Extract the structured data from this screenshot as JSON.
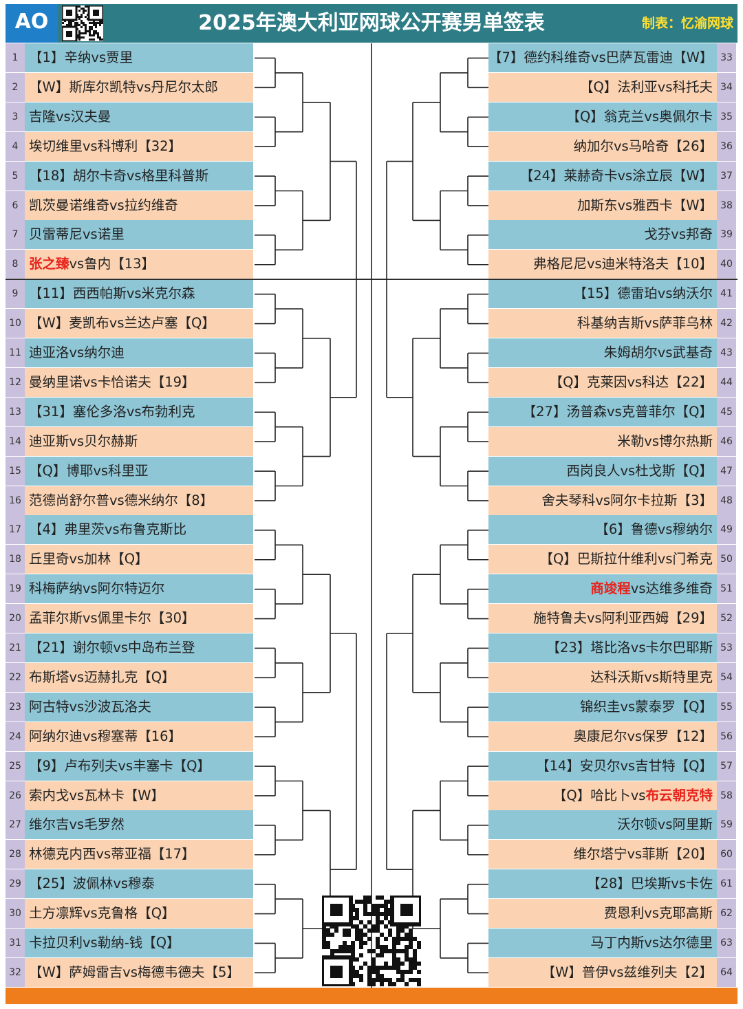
{
  "header": {
    "logo_text": "AO",
    "title": "2025年澳大利亚网球公开赛男单签表",
    "maker": "制表：忆渝网球"
  },
  "colors": {
    "header_bg": "#2e7d86",
    "row_blue": "#8ec6d6",
    "row_peach": "#fbd3b2",
    "num_bg": "#c9c0dd",
    "highlight": "#e8231c",
    "bottom_bar": "#ef7d1c",
    "title_text": "#ffffff",
    "maker_text": "#ffe030"
  },
  "left_matches": [
    {
      "num": "1",
      "pre": "【1】辛纳vs贾里",
      "hl": "",
      "post": ""
    },
    {
      "num": "2",
      "pre": "【W】斯库尔凯特vs丹尼尔太郎",
      "hl": "",
      "post": ""
    },
    {
      "num": "3",
      "pre": "吉隆vs汉夫曼",
      "hl": "",
      "post": ""
    },
    {
      "num": "4",
      "pre": "埃切维里vs科博利【32】",
      "hl": "",
      "post": ""
    },
    {
      "num": "5",
      "pre": "【18】胡尔卡奇vs格里科普斯",
      "hl": "",
      "post": ""
    },
    {
      "num": "6",
      "pre": "凯茨曼诺维奇vs拉约维奇",
      "hl": "",
      "post": ""
    },
    {
      "num": "7",
      "pre": "贝雷蒂尼vs诺里",
      "hl": "",
      "post": ""
    },
    {
      "num": "8",
      "pre": "",
      "hl": "张之臻",
      "post": "vs鲁内【13】"
    },
    {
      "num": "9",
      "pre": "【11】西西帕斯vs米克尔森",
      "hl": "",
      "post": ""
    },
    {
      "num": "10",
      "pre": "【W】麦凯布vs兰达卢塞【Q】",
      "hl": "",
      "post": ""
    },
    {
      "num": "11",
      "pre": "迪亚洛vs纳尔迪",
      "hl": "",
      "post": ""
    },
    {
      "num": "12",
      "pre": "曼纳里诺vs卡恰诺夫【19】",
      "hl": "",
      "post": ""
    },
    {
      "num": "13",
      "pre": "【31】塞伦多洛vs布勃利克",
      "hl": "",
      "post": ""
    },
    {
      "num": "14",
      "pre": "迪亚斯vs贝尔赫斯",
      "hl": "",
      "post": ""
    },
    {
      "num": "15",
      "pre": "【Q】博耶vs科里亚",
      "hl": "",
      "post": ""
    },
    {
      "num": "16",
      "pre": "范德尚舒尔普vs德米纳尔【8】",
      "hl": "",
      "post": ""
    },
    {
      "num": "17",
      "pre": "【4】弗里茨vs布鲁克斯比",
      "hl": "",
      "post": ""
    },
    {
      "num": "18",
      "pre": "丘里奇vs加林【Q】",
      "hl": "",
      "post": ""
    },
    {
      "num": "19",
      "pre": "科梅萨纳vs阿尔特迈尔",
      "hl": "",
      "post": ""
    },
    {
      "num": "20",
      "pre": "孟菲尔斯vs佩里卡尔【30】",
      "hl": "",
      "post": ""
    },
    {
      "num": "21",
      "pre": "【21】谢尔顿vs中岛布兰登",
      "hl": "",
      "post": ""
    },
    {
      "num": "22",
      "pre": "布斯塔vs迈赫扎克【Q】",
      "hl": "",
      "post": ""
    },
    {
      "num": "23",
      "pre": "阿古特vs沙波瓦洛夫",
      "hl": "",
      "post": ""
    },
    {
      "num": "24",
      "pre": "阿纳尔迪vs穆塞蒂【16】",
      "hl": "",
      "post": ""
    },
    {
      "num": "25",
      "pre": "【9】卢布列夫vs丰塞卡【Q】",
      "hl": "",
      "post": ""
    },
    {
      "num": "26",
      "pre": "索内戈vs瓦林卡【W】",
      "hl": "",
      "post": ""
    },
    {
      "num": "27",
      "pre": "维尔吉vs毛罗然",
      "hl": "",
      "post": ""
    },
    {
      "num": "28",
      "pre": "林德克内西vs蒂亚福【17】",
      "hl": "",
      "post": ""
    },
    {
      "num": "29",
      "pre": "【25】波佩林vs穆泰",
      "hl": "",
      "post": ""
    },
    {
      "num": "30",
      "pre": "土方凛辉vs克鲁格【Q】",
      "hl": "",
      "post": ""
    },
    {
      "num": "31",
      "pre": "卡拉贝利vs勒纳-钱【Q】",
      "hl": "",
      "post": ""
    },
    {
      "num": "32",
      "pre": "【W】萨姆雷吉vs梅德韦德夫【5】",
      "hl": "",
      "post": ""
    }
  ],
  "right_matches": [
    {
      "num": "33",
      "pre": "【7】德约科维奇vs巴萨瓦雷迪【W】",
      "hl": "",
      "post": ""
    },
    {
      "num": "34",
      "pre": "【Q】法利亚vs科托夫",
      "hl": "",
      "post": ""
    },
    {
      "num": "35",
      "pre": "【Q】翁克兰vs奥佩尔卡",
      "hl": "",
      "post": ""
    },
    {
      "num": "36",
      "pre": "纳加尔vs马哈奇【26】",
      "hl": "",
      "post": ""
    },
    {
      "num": "37",
      "pre": "【24】莱赫奇卡vs涂立辰【W】",
      "hl": "",
      "post": ""
    },
    {
      "num": "38",
      "pre": "加斯东vs雅西卡【W】",
      "hl": "",
      "post": ""
    },
    {
      "num": "39",
      "pre": "戈芬vs邦奇",
      "hl": "",
      "post": ""
    },
    {
      "num": "40",
      "pre": "弗格尼尼vs迪米特洛夫【10】",
      "hl": "",
      "post": ""
    },
    {
      "num": "41",
      "pre": "【15】德雷珀vs纳沃尔",
      "hl": "",
      "post": ""
    },
    {
      "num": "42",
      "pre": "科基纳吉斯vs萨菲乌林",
      "hl": "",
      "post": ""
    },
    {
      "num": "43",
      "pre": "朱姆胡尔vs武基奇",
      "hl": "",
      "post": ""
    },
    {
      "num": "44",
      "pre": "【Q】克莱因vs科达【22】",
      "hl": "",
      "post": ""
    },
    {
      "num": "45",
      "pre": "【27】汤普森vs克普菲尔【Q】",
      "hl": "",
      "post": ""
    },
    {
      "num": "46",
      "pre": "米勒vs博尔热斯",
      "hl": "",
      "post": ""
    },
    {
      "num": "47",
      "pre": "西岗良人vs杜戈斯【Q】",
      "hl": "",
      "post": ""
    },
    {
      "num": "48",
      "pre": "舍夫琴科vs阿尔卡拉斯【3】",
      "hl": "",
      "post": ""
    },
    {
      "num": "49",
      "pre": "【6】鲁德vs穆纳尔",
      "hl": "",
      "post": ""
    },
    {
      "num": "50",
      "pre": "【Q】巴斯拉什维利vs门希克",
      "hl": "",
      "post": ""
    },
    {
      "num": "51",
      "pre": "",
      "hl": "商竣程",
      "post": "vs达维多维奇"
    },
    {
      "num": "52",
      "pre": "施特鲁夫vs阿利亚西姆【29】",
      "hl": "",
      "post": ""
    },
    {
      "num": "53",
      "pre": "【23】塔比洛vs卡尔巴耶斯",
      "hl": "",
      "post": ""
    },
    {
      "num": "54",
      "pre": "达科沃斯vs斯特里克",
      "hl": "",
      "post": ""
    },
    {
      "num": "55",
      "pre": "锦织圭vs蒙泰罗【Q】",
      "hl": "",
      "post": ""
    },
    {
      "num": "56",
      "pre": "奥康尼尔vs保罗【12】",
      "hl": "",
      "post": ""
    },
    {
      "num": "57",
      "pre": "【14】安贝尔vs吉甘特【Q】",
      "hl": "",
      "post": ""
    },
    {
      "num": "58",
      "pre": "【Q】哈比卜vs",
      "hl": "布云朝克特",
      "post": ""
    },
    {
      "num": "59",
      "pre": "沃尔顿vs阿里斯",
      "hl": "",
      "post": ""
    },
    {
      "num": "60",
      "pre": "维尔塔宁vs菲斯【20】",
      "hl": "",
      "post": ""
    },
    {
      "num": "61",
      "pre": "【28】巴埃斯vs卡佐",
      "hl": "",
      "post": ""
    },
    {
      "num": "62",
      "pre": "费恩利vs克耶高斯",
      "hl": "",
      "post": ""
    },
    {
      "num": "63",
      "pre": "马丁内斯vs达尔德里",
      "hl": "",
      "post": ""
    },
    {
      "num": "64",
      "pre": "【W】普伊vs兹维列夫【2】",
      "hl": "",
      "post": ""
    }
  ]
}
